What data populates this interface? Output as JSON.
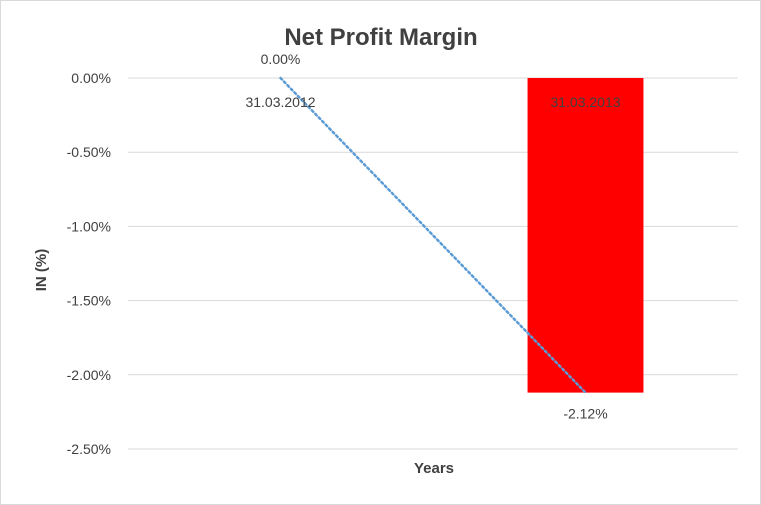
{
  "chart_data": {
    "type": "bar",
    "title": "Net Profit Margin",
    "xlabel": "Years",
    "ylabel": "IN (%)",
    "categories": [
      "31.03.2012",
      "31.03.2013"
    ],
    "values": [
      0.0,
      -2.12
    ],
    "data_labels": [
      "0.00%",
      "-2.12%"
    ],
    "yticks": [
      "0.00%",
      "-0.50%",
      "-1.00%",
      "-1.50%",
      "-2.00%",
      "-2.50%"
    ],
    "ytick_values": [
      0,
      -0.5,
      -1.0,
      -1.5,
      -2.0,
      -2.5
    ],
    "ylim": [
      -2.5,
      0
    ],
    "bar_color": "#ff0000",
    "trendline": {
      "style": "dotted",
      "color": "#5b9bd5"
    },
    "grid": true,
    "legend": "none"
  }
}
